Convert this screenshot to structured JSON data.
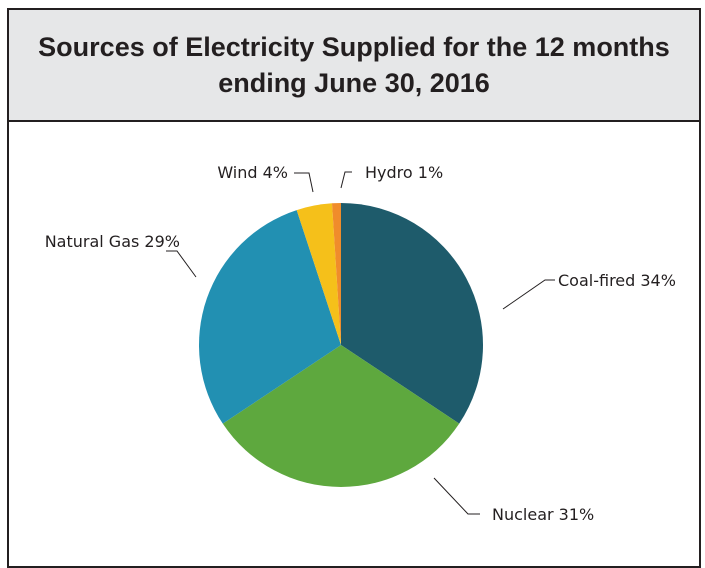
{
  "chart_data": {
    "type": "pie",
    "title_lines": [
      "Sources of Electricity Supplied for the 12 months",
      "ending June 30, 2016"
    ],
    "slices": [
      {
        "label": "Coal-fired 34%",
        "value": 34,
        "color": "#1e5b6b"
      },
      {
        "label": "Nuclear 31%",
        "value": 31,
        "color": "#5ea83e"
      },
      {
        "label": "Natural Gas 29%",
        "value": 29,
        "color": "#2290b2"
      },
      {
        "label": "Wind 4%",
        "value": 4,
        "color": "#f5c01a"
      },
      {
        "label": "Hydro 1%",
        "value": 1,
        "color": "#f08c2b"
      }
    ],
    "start_angle": "12 o'clock",
    "direction": "clockwise",
    "legend": "none"
  }
}
